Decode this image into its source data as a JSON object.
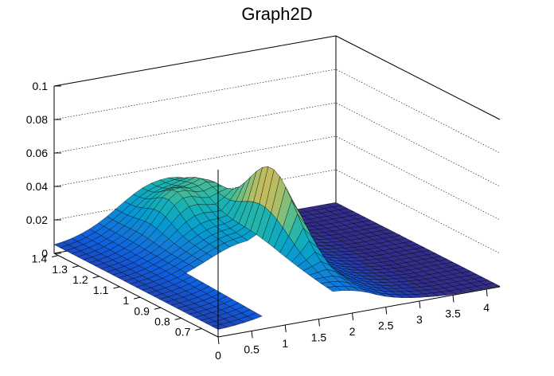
{
  "chart_data": {
    "type": "surface",
    "title": "Graph2D",
    "xlabel": "",
    "ylabel": "",
    "zlabel": "",
    "xlim": [
      0,
      4.2
    ],
    "ylim": [
      0.62,
      1.42
    ],
    "zlim": [
      0,
      0.1
    ],
    "x_ticks": [
      "0",
      "0.5",
      "1",
      "1.5",
      "2",
      "2.5",
      "3",
      "3.5",
      "4"
    ],
    "y_ticks": [
      "0.7",
      "0.8",
      "0.9",
      "1",
      "1.1",
      "1.2",
      "1.3",
      "1.4"
    ],
    "z_ticks": [
      "0",
      "0.02",
      "0.04",
      "0.06",
      "0.08",
      "0.1"
    ],
    "grid": "z-gridlines on back walls",
    "colormap": "viridis-like (dark blue to yellow)",
    "surface_notes": "Low surface rising along y toward ~0.04 near x=1.5-2; sharp peak ~0.07 near x=2, y=1.0; blank region where surface is undefined for x in 0.6-1.8 at low y",
    "peak_z": 0.07
  }
}
